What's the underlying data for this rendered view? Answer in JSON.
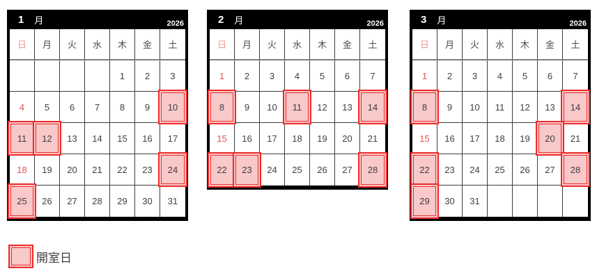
{
  "year": "2026",
  "month_suffix": "月",
  "day_headers": [
    "日",
    "月",
    "火",
    "水",
    "木",
    "金",
    "土"
  ],
  "legend": {
    "label": "開室日"
  },
  "colors": {
    "header_bg": "#000000",
    "header_text": "#ffffff",
    "highlight_fill": "#f9c8c8",
    "highlight_border": "#ee2b2b",
    "sunday_text": "#e25151",
    "sunday_header_text": "#f19999",
    "weekday_text": "#3e3e46"
  },
  "months": [
    {
      "label": "1",
      "year": "2026",
      "weeks": [
        [
          "",
          "",
          "",
          "",
          "1",
          "2",
          "3"
        ],
        [
          "4",
          "5",
          "6",
          "7",
          "8",
          "9",
          "10"
        ],
        [
          "11",
          "12",
          "13",
          "14",
          "15",
          "16",
          "17"
        ],
        [
          "18",
          "19",
          "20",
          "21",
          "22",
          "23",
          "24"
        ],
        [
          "25",
          "26",
          "27",
          "28",
          "29",
          "30",
          "31"
        ]
      ],
      "open_days": [
        10,
        11,
        12,
        24,
        25
      ]
    },
    {
      "label": "2",
      "year": "2026",
      "weeks": [
        [
          "1",
          "2",
          "3",
          "4",
          "5",
          "6",
          "7"
        ],
        [
          "8",
          "9",
          "10",
          "11",
          "12",
          "13",
          "14"
        ],
        [
          "15",
          "16",
          "17",
          "18",
          "19",
          "20",
          "21"
        ],
        [
          "22",
          "23",
          "24",
          "25",
          "26",
          "27",
          "28"
        ]
      ],
      "open_days": [
        8,
        11,
        14,
        22,
        23,
        28
      ]
    },
    {
      "label": "3",
      "year": "2026",
      "weeks": [
        [
          "1",
          "2",
          "3",
          "4",
          "5",
          "6",
          "7"
        ],
        [
          "8",
          "9",
          "10",
          "11",
          "12",
          "13",
          "14"
        ],
        [
          "15",
          "16",
          "17",
          "18",
          "19",
          "20",
          "21"
        ],
        [
          "22",
          "23",
          "24",
          "25",
          "26",
          "27",
          "28"
        ],
        [
          "29",
          "30",
          "31",
          "",
          "",
          "",
          ""
        ]
      ],
      "open_days": [
        8,
        14,
        20,
        22,
        28,
        29
      ]
    }
  ]
}
